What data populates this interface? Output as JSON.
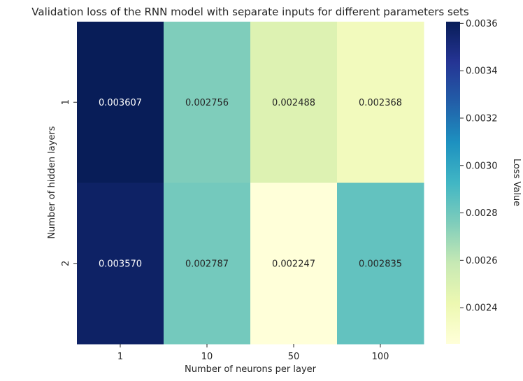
{
  "chart_data": {
    "type": "heatmap",
    "title": "Validation loss of the RNN model with separate inputs for different parameters sets",
    "xlabel": "Number of neurons per layer",
    "ylabel": "Number of hidden layers",
    "x_categories": [
      "1",
      "10",
      "50",
      "100"
    ],
    "y_categories": [
      "1",
      "2"
    ],
    "values": [
      [
        0.003607,
        0.002756,
        0.002488,
        0.002368
      ],
      [
        0.00357,
        0.002787,
        0.002247,
        0.002835
      ]
    ],
    "cell_labels": [
      [
        "0.003607",
        "0.002756",
        "0.002488",
        "0.002368"
      ],
      [
        "0.003570",
        "0.002787",
        "0.002247",
        "0.002835"
      ]
    ],
    "colorbar": {
      "label": "Loss Value",
      "range": [
        0.002247,
        0.003607
      ],
      "ticks": [
        "0.0024",
        "0.0026",
        "0.0028",
        "0.0030",
        "0.0032",
        "0.0034",
        "0.0036"
      ],
      "colormap": "YlGnBu",
      "colormap_stops": [
        "#ffffd9",
        "#edf8b1",
        "#c7e9b4",
        "#7fcdbb",
        "#41b6c4",
        "#1d91c0",
        "#225ea8",
        "#253494",
        "#081d58"
      ]
    },
    "text_color_light": "#ffffff",
    "text_color_dark": "#262626"
  }
}
